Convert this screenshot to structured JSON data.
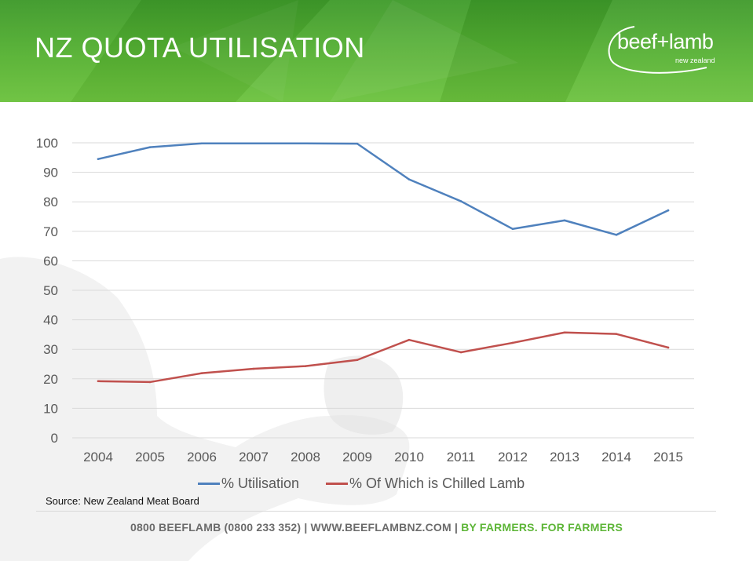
{
  "slide": {
    "title": "NZ QUOTA UTILISATION",
    "logo_text": "beef+lamb",
    "logo_subtext": "new zealand",
    "source": "Source: New Zealand Meat Board",
    "footer_contact": "0800 BEEFLAMB (0800 233 352) | WWW.BEEFLAMBNZ.COM | ",
    "footer_tagline": "BY FARMERS. FOR FARMERS"
  },
  "colors": {
    "header_green": "#57b233",
    "series_blue": "#4f81bd",
    "series_red": "#c0504d",
    "tagline_green": "#5db537"
  },
  "chart_data": {
    "type": "line",
    "title": "",
    "xlabel": "",
    "ylabel": "",
    "categories": [
      "2004",
      "2005",
      "2006",
      "2007",
      "2008",
      "2009",
      "2010",
      "2011",
      "2012",
      "2013",
      "2014",
      "2015"
    ],
    "ylim": [
      0,
      100
    ],
    "yticks": [
      0,
      10,
      20,
      30,
      40,
      50,
      60,
      70,
      80,
      90,
      100
    ],
    "grid": true,
    "legend_position": "bottom",
    "series": [
      {
        "name": "% Utilisation",
        "color": "#4f81bd",
        "values": [
          94.5,
          98.5,
          99.8,
          99.8,
          99.8,
          99.7,
          87.6,
          80.2,
          70.8,
          73.7,
          68.8,
          77.1
        ]
      },
      {
        "name": "% Of Which is Chilled Lamb",
        "color": "#c0504d",
        "values": [
          19.2,
          18.9,
          21.9,
          23.4,
          24.3,
          26.4,
          33.2,
          29.0,
          32.2,
          35.7,
          35.2,
          30.6
        ]
      }
    ]
  }
}
